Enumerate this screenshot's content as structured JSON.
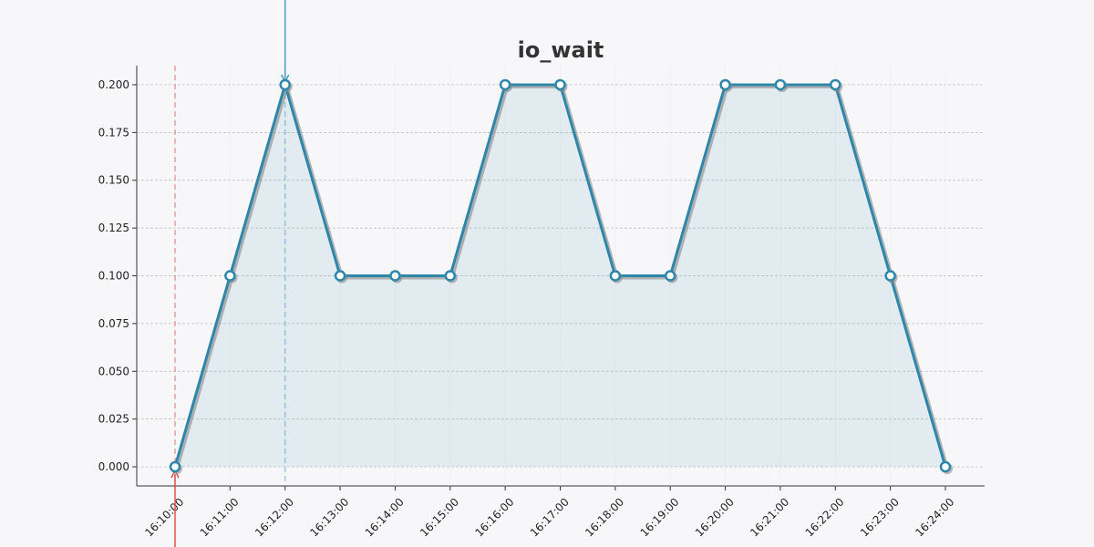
{
  "chart_data": {
    "type": "line",
    "title": "io_wait",
    "x": [
      "16:10:00",
      "16:11:00",
      "16:12:00",
      "16:13:00",
      "16:14:00",
      "16:15:00",
      "16:16:00",
      "16:17:00",
      "16:18:00",
      "16:19:00",
      "16:20:00",
      "16:21:00",
      "16:22:00",
      "16:23:00",
      "16:24:00"
    ],
    "series": [
      {
        "name": "io_wait",
        "color": "#2e86ab",
        "values": [
          0,
          0.1,
          0.2,
          0.1,
          0.1,
          0.1,
          0.2,
          0.2,
          0.1,
          0.1,
          0.2,
          0.2,
          0.2,
          0.1,
          0
        ]
      }
    ],
    "ylim": [
      -0.01,
      0.21
    ],
    "yticks": [
      {
        "value": 0,
        "label": "0.000"
      },
      {
        "value": 0.025,
        "label": "0.025"
      },
      {
        "value": 0.05,
        "label": "0.050"
      },
      {
        "value": 0.075,
        "label": "0.075"
      },
      {
        "value": 0.1,
        "label": "0.100"
      },
      {
        "value": 0.125,
        "label": "0.125"
      },
      {
        "value": 0.15,
        "label": "0.150"
      },
      {
        "value": 0.175,
        "label": "0.175"
      },
      {
        "value": 0.2,
        "label": "0.200"
      }
    ],
    "grid": true,
    "vlines": [
      {
        "x": "16:10:00",
        "color": "#d9534f",
        "arrow": "bottom"
      },
      {
        "x": "16:12:00",
        "color": "#4a9cc7",
        "arrow": "top"
      }
    ]
  }
}
